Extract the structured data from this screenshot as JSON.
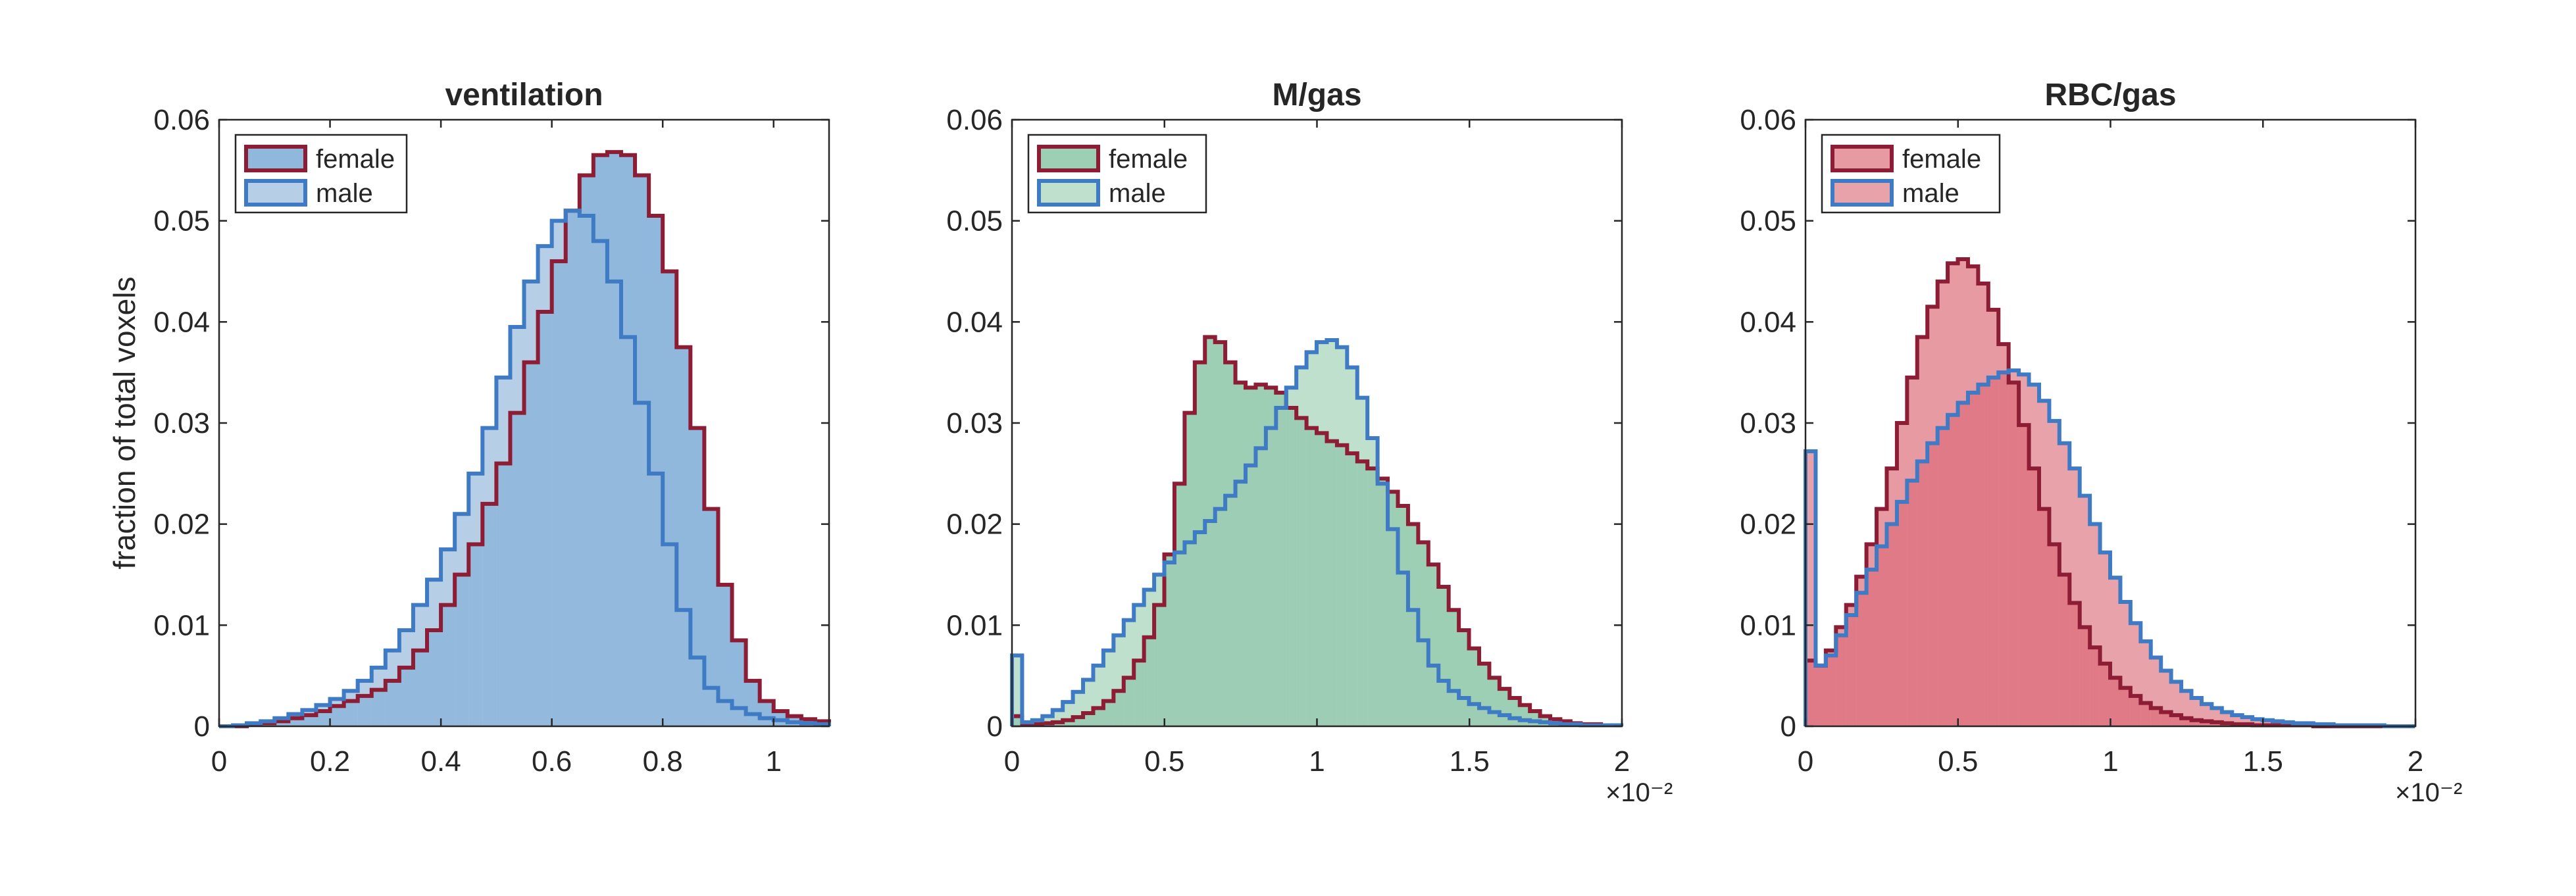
{
  "colors": {
    "female_line": "#8c1d35",
    "male_line": "#3f7bc4",
    "axis": "#262626",
    "panel_fills": {
      "ventilation": {
        "female": "#8fb8dc",
        "male": "#b6cfe6",
        "overlap": "#93b9dd"
      },
      "m_gas": {
        "female": "#9ccfb3",
        "male": "#bfe0cc",
        "overlap": "#9dcdb4"
      },
      "rbc_gas": {
        "female": "#e79aa2",
        "male": "#e8a2a9",
        "overlap": "#e07a86"
      }
    }
  },
  "chart_data": [
    {
      "type": "histogram",
      "id": "ventilation",
      "title": "ventilation",
      "xlabel": "",
      "ylabel": "fraction of total voxels",
      "xlim": [
        0,
        1.1
      ],
      "ylim": [
        0,
        0.06
      ],
      "x_exponent_label": "",
      "xticks": [
        0,
        0.2,
        0.4,
        0.6,
        0.8,
        1
      ],
      "xtick_labels": [
        "0",
        "0.2",
        "0.4",
        "0.6",
        "0.8",
        "1"
      ],
      "yticks": [
        0,
        0.01,
        0.02,
        0.03,
        0.04,
        0.05,
        0.06
      ],
      "ytick_labels": [
        "0",
        "0.01",
        "0.02",
        "0.03",
        "0.04",
        "0.05",
        "0.06"
      ],
      "legend_position": "top-left",
      "bin_start": 0,
      "bin_width": 0.025,
      "series": [
        {
          "name": "female",
          "values": [
            0,
            0,
            0.0002,
            0.0003,
            0.0005,
            0.0008,
            0.0011,
            0.0015,
            0.002,
            0.0025,
            0.003,
            0.0036,
            0.0045,
            0.0058,
            0.0075,
            0.0095,
            0.012,
            0.015,
            0.018,
            0.022,
            0.026,
            0.031,
            0.036,
            0.041,
            0.046,
            0.051,
            0.0545,
            0.0565,
            0.0568,
            0.0565,
            0.0545,
            0.0505,
            0.045,
            0.0375,
            0.0295,
            0.0215,
            0.014,
            0.0085,
            0.0045,
            0.0025,
            0.0015,
            0.001,
            0.0007,
            0.0005
          ]
        },
        {
          "name": "male",
          "values": [
            0,
            0.0001,
            0.0003,
            0.0005,
            0.0008,
            0.0012,
            0.0016,
            0.0021,
            0.0027,
            0.0035,
            0.0045,
            0.0058,
            0.0075,
            0.0095,
            0.012,
            0.0145,
            0.0175,
            0.021,
            0.025,
            0.0295,
            0.0345,
            0.0395,
            0.044,
            0.0475,
            0.05,
            0.051,
            0.0505,
            0.048,
            0.044,
            0.0385,
            0.032,
            0.025,
            0.018,
            0.0115,
            0.0068,
            0.0038,
            0.0025,
            0.0018,
            0.0012,
            0.0008,
            0.0006,
            0.0004,
            0.0003,
            0.0002
          ]
        }
      ]
    },
    {
      "type": "histogram",
      "id": "m_gas",
      "title": "M/gas",
      "xlabel": "",
      "ylabel": "",
      "xlim": [
        0,
        2
      ],
      "ylim": [
        0,
        0.06
      ],
      "x_exponent_label": "×10⁻²",
      "xticks": [
        0,
        0.5,
        1,
        1.5,
        2
      ],
      "xtick_labels": [
        "0",
        "0.5",
        "1",
        "1.5",
        "2"
      ],
      "yticks": [
        0,
        0.01,
        0.02,
        0.03,
        0.04,
        0.05,
        0.06
      ],
      "ytick_labels": [
        "0",
        "0.01",
        "0.02",
        "0.03",
        "0.04",
        "0.05",
        "0.06"
      ],
      "legend_position": "top-left",
      "bin_start": 0,
      "bin_width": 0.0333,
      "series": [
        {
          "name": "female",
          "values": [
            0.001,
            0.0002,
            0.0002,
            0.0003,
            0.0004,
            0.0006,
            0.0009,
            0.0013,
            0.0018,
            0.0025,
            0.0035,
            0.0048,
            0.0065,
            0.0088,
            0.012,
            0.017,
            0.024,
            0.031,
            0.036,
            0.0385,
            0.038,
            0.036,
            0.034,
            0.0335,
            0.0338,
            0.0335,
            0.033,
            0.0315,
            0.0305,
            0.0295,
            0.029,
            0.0282,
            0.0278,
            0.027,
            0.0262,
            0.0255,
            0.0245,
            0.0232,
            0.0218,
            0.02,
            0.0182,
            0.016,
            0.0138,
            0.0115,
            0.0095,
            0.0077,
            0.0062,
            0.0048,
            0.0037,
            0.0028,
            0.0021,
            0.0015,
            0.001,
            0.0007,
            0.0005,
            0.0003,
            0.0002,
            0.0002,
            0.0001,
            0.0001
          ]
        },
        {
          "name": "male",
          "values": [
            0.007,
            0.0004,
            0.0006,
            0.001,
            0.0016,
            0.0024,
            0.0034,
            0.0046,
            0.006,
            0.0075,
            0.009,
            0.0105,
            0.012,
            0.0135,
            0.015,
            0.0162,
            0.0172,
            0.0182,
            0.0192,
            0.0203,
            0.0215,
            0.0228,
            0.0242,
            0.0258,
            0.0275,
            0.0295,
            0.0315,
            0.0335,
            0.0355,
            0.037,
            0.038,
            0.0382,
            0.0375,
            0.0355,
            0.0325,
            0.0285,
            0.024,
            0.0195,
            0.0152,
            0.0115,
            0.0085,
            0.006,
            0.0045,
            0.0035,
            0.0028,
            0.0022,
            0.0018,
            0.0014,
            0.0011,
            0.0008,
            0.0006,
            0.0005,
            0.0004,
            0.0003,
            0.0002,
            0.0002,
            0.0001,
            0.0001,
            0.0001,
            0.0001
          ]
        }
      ]
    },
    {
      "type": "histogram",
      "id": "rbc_gas",
      "title": "RBC/gas",
      "xlabel": "",
      "ylabel": "",
      "xlim": [
        0,
        2
      ],
      "ylim": [
        0,
        0.06
      ],
      "x_exponent_label": "×10⁻²",
      "xticks": [
        0,
        0.5,
        1,
        1.5,
        2
      ],
      "xtick_labels": [
        "0",
        "0.5",
        "1",
        "1.5",
        "2"
      ],
      "yticks": [
        0,
        0.01,
        0.02,
        0.03,
        0.04,
        0.05,
        0.06
      ],
      "ytick_labels": [
        "0",
        "0.01",
        "0.02",
        "0.03",
        "0.04",
        "0.05",
        "0.06"
      ],
      "legend_position": "top-left",
      "bin_start": 0,
      "bin_width": 0.0333,
      "series": [
        {
          "name": "female",
          "values": [
            0.0065,
            0.006,
            0.0075,
            0.0098,
            0.012,
            0.0148,
            0.018,
            0.0215,
            0.0255,
            0.03,
            0.0345,
            0.0385,
            0.0415,
            0.044,
            0.0458,
            0.0462,
            0.0455,
            0.0438,
            0.0412,
            0.0378,
            0.034,
            0.0298,
            0.0255,
            0.0215,
            0.018,
            0.015,
            0.0122,
            0.0098,
            0.0078,
            0.0062,
            0.0048,
            0.0038,
            0.003,
            0.0023,
            0.0018,
            0.0014,
            0.0011,
            0.0008,
            0.0006,
            0.0005,
            0.0004,
            0.0003,
            0.0002,
            0.0002,
            0.0001,
            0.0001,
            0.0001,
            0.0001,
            0.0001,
            0.0001,
            0.0,
            0.0,
            0.0,
            0.0,
            0.0,
            0.0,
            0.0,
            0.0,
            0.0,
            0.0
          ]
        },
        {
          "name": "male",
          "values": [
            0.0272,
            0.006,
            0.007,
            0.009,
            0.011,
            0.0132,
            0.0155,
            0.0178,
            0.02,
            0.0222,
            0.0243,
            0.0262,
            0.028,
            0.0295,
            0.0308,
            0.032,
            0.033,
            0.0338,
            0.0345,
            0.035,
            0.0352,
            0.0348,
            0.0338,
            0.0322,
            0.0302,
            0.028,
            0.0255,
            0.0228,
            0.02,
            0.0172,
            0.0147,
            0.0123,
            0.0102,
            0.0084,
            0.0068,
            0.0055,
            0.0044,
            0.0035,
            0.0028,
            0.0022,
            0.0018,
            0.0014,
            0.0011,
            0.0009,
            0.0007,
            0.0006,
            0.0005,
            0.0004,
            0.0003,
            0.0003,
            0.0002,
            0.0002,
            0.0001,
            0.0001,
            0.0001,
            0.0001,
            0.0001,
            0.0,
            0.0,
            0.0
          ]
        }
      ]
    }
  ]
}
